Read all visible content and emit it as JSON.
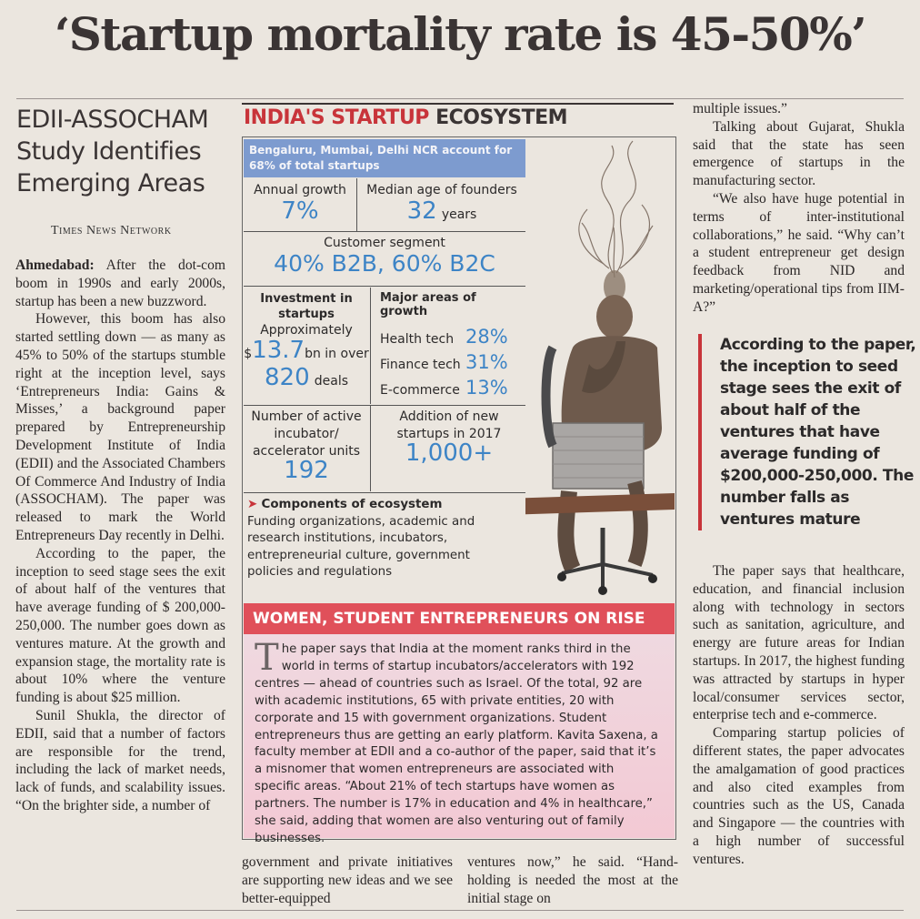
{
  "headline": "‘Startup mortality rate is 45-50%’",
  "subhead": [
    "EDII-ASSOCHAM",
    "Study Identifies",
    "Emerging Areas"
  ],
  "byline": "Times News Network",
  "left_column": {
    "dateline": "Ahmedabad:",
    "p1": "After the dot-com boom in 1990s and early 2000s, startup has been a new buzzword.",
    "p2": "However, this boom has also started settling down — as many as 45% to 50% of the startups stumble right at the inception level, says ‘Entrepreneurs India: Gains & Misses,’ a background paper prepared by Entrepreneurship Development Institute of India (EDII) and the Associated Chambers Of Commerce And Industry of India (ASSOCHAM). The paper was released to mark the World Entrepreneurs Day recently in Delhi.",
    "p3": "According to the paper, the inception to seed stage sees the exit of about half of the ventures that have average funding of $ 200,000-250,000. The number goes down as ventures mature. At the growth and expansion stage, the mortality rate is about 10% where the venture funding is about $25 million.",
    "p4": "Sunil Shukla, the director of EDII, said that a number of factors are responsible for the trend, including the lack of market needs, lack of funds, and scalability issues. “On the brighter side, a number of"
  },
  "bottom_cols": {
    "c1": "government and private initiatives are supporting new ideas and we see better-equipped",
    "c2": "ventures now,” he said. “Hand-holding is needed the most at the initial stage on"
  },
  "right_column": {
    "p0": "multiple issues.”",
    "p1": "Talking about Gujarat, Shukla said that the state has seen emergence of startups in the manufacturing sector.",
    "p2": "“We also have huge potential in terms of inter-institutional collaborations,” he said. “Why can’t a student entrepreneur get design feedback from NID and marketing/operational tips from IIM-A?”",
    "pullquote": "According to the paper, the inception to seed stage sees the exit of about half of the ventures that have average funding of $200,000-250,000. The number falls as ventures mature",
    "p3": "The paper says that healthcare, education, and financial inclusion along with technology in sectors such as sanitation, agriculture, and energy are future areas for Indian startups. In 2017, the highest funding was attracted by startups in hyper local/consumer services sector, enterprise tech and e-commerce.",
    "p4": "Comparing startup policies of different states, the paper advocates the amalgamation of good practices and also cited examples from countries such as the US, Canada and Singapore — the countries with a high number of successful ventures."
  },
  "infographic": {
    "title_red": "INDIA'S STARTUP",
    "title_dark": "ECOSYSTEM",
    "banner": "Bengaluru, Mumbai, Delhi NCR account for 68% of total startups",
    "annual_growth_label": "Annual growth",
    "annual_growth_value": "7%",
    "median_age_label": "Median age of founders",
    "median_age_value": "32",
    "median_age_unit": "years",
    "customer_segment_label": "Customer segment",
    "customer_segment_value": "40% B2B, 60% B2C",
    "investment_label": "Investment in startups",
    "investment_approx": "Approximately",
    "investment_dollar": "$",
    "investment_amount": "13.7",
    "investment_unit": "bn in over",
    "investment_deals": "820",
    "investment_deals_unit": "deals",
    "growth_areas_label": "Major areas of growth",
    "growth_areas": [
      {
        "name": "Health tech",
        "value": "28%"
      },
      {
        "name": "Finance tech",
        "value": "31%"
      },
      {
        "name": "E-commerce",
        "value": "13%"
      }
    ],
    "incubators_label": "Number of active incubator/ accelerator units",
    "incubators_value": "192",
    "new_startups_label": "Addition of new startups in 2017",
    "new_startups_value": "1,000+",
    "components_arrow": "➤",
    "components_head": "Components of ecosystem",
    "components_text": "Funding organizations, academic and research institutions, incubators, entrepreneurial culture, government policies and regulations",
    "women_title": "WOMEN, STUDENT ENTREPRENEURS ON RISE",
    "women_dropcap": "T",
    "women_text": "he paper says that India at the moment ranks third in the world in terms of startup incubators/accelerators with 192 centres — ahead of countries such as Israel. Of the total, 92 are with academic institutions, 65 with private entities, 20 with corporate and 15 with government organizations. Student entrepreneurs thus are getting an early platform. Kavita Saxena, a faculty member at EDII and a co-author of the paper, said that it’s a misnomer that women entrepreneurs are associated with specific areas. “About 21% of tech startups have women as partners. The number is 17% in education and 4% in healthcare,” she said, adding that women are also venturing out of family businesses."
  }
}
